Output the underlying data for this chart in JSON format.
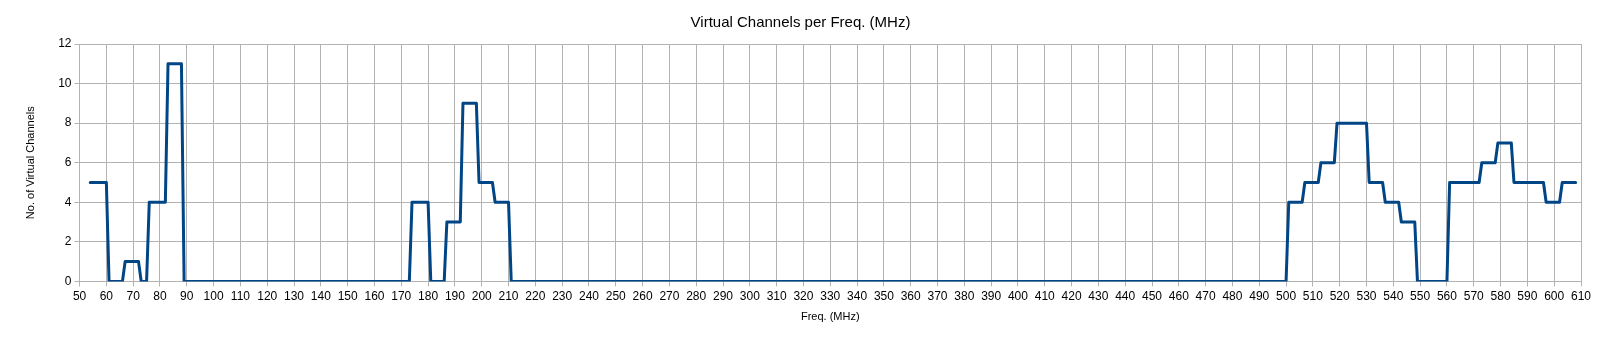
{
  "chart_data": {
    "type": "line",
    "title": "Virtual Channels per Freq. (MHz)",
    "xlabel": "Freq. (MHz)",
    "ylabel": "No. of Virtual Channels",
    "x": [
      54,
      60,
      61,
      66,
      67,
      72,
      73,
      75,
      76,
      82,
      83,
      88,
      89,
      173,
      174,
      180,
      181,
      186,
      187,
      192,
      193,
      198,
      199,
      204,
      205,
      210,
      211,
      500,
      501,
      506,
      507,
      512,
      513,
      518,
      519,
      530,
      531,
      536,
      537,
      542,
      543,
      548,
      549,
      560,
      561,
      572,
      573,
      578,
      579,
      584,
      585,
      596,
      597,
      602,
      603,
      608
    ],
    "series": [
      {
        "color": "#004586",
        "values": [
          5,
          5,
          0,
          0,
          1,
          1,
          0,
          0,
          4,
          4,
          11,
          11,
          0,
          0,
          4,
          4,
          0,
          0,
          3,
          3,
          9,
          9,
          5,
          5,
          4,
          4,
          0,
          0,
          4,
          4,
          5,
          5,
          6,
          6,
          8,
          8,
          5,
          5,
          4,
          4,
          3,
          3,
          0,
          0,
          5,
          5,
          6,
          6,
          7,
          7,
          5,
          5,
          4,
          4,
          5,
          5
        ]
      }
    ],
    "xlim": [
      50,
      610
    ],
    "xticks": [
      50,
      60,
      70,
      80,
      90,
      100,
      110,
      120,
      130,
      140,
      150,
      160,
      170,
      180,
      190,
      200,
      210,
      220,
      230,
      240,
      250,
      260,
      270,
      280,
      290,
      300,
      310,
      320,
      330,
      340,
      350,
      360,
      370,
      380,
      390,
      400,
      410,
      420,
      430,
      440,
      450,
      460,
      470,
      480,
      490,
      500,
      510,
      520,
      530,
      540,
      550,
      560,
      570,
      580,
      590,
      600,
      610
    ],
    "ylim": [
      0,
      12
    ],
    "yticks": [
      0,
      2,
      4,
      6,
      8,
      10,
      12
    ],
    "grid": true,
    "legend": false,
    "marker": "none",
    "line_style": "solid"
  }
}
